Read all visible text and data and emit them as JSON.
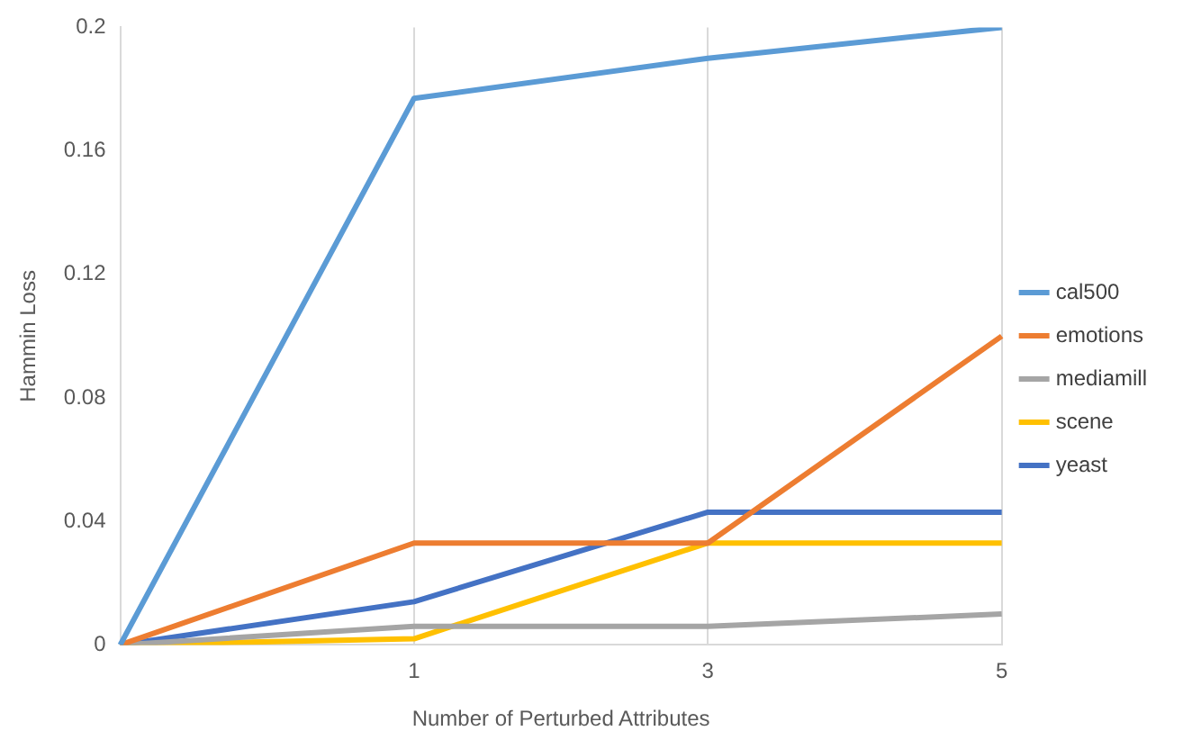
{
  "chart_data": {
    "type": "line",
    "xlabel": "Number of Perturbed Attributes",
    "ylabel": "Hammin Loss",
    "categories": [
      null,
      "1",
      "3",
      "5"
    ],
    "series": [
      {
        "name": "cal500",
        "color": "#5b9bd5",
        "values": [
          0,
          0.177,
          0.19,
          0.2
        ]
      },
      {
        "name": "emotions",
        "color": "#ed7d31",
        "values": [
          0,
          0.033,
          0.033,
          0.1
        ]
      },
      {
        "name": "mediamill",
        "color": "#a5a5a5",
        "values": [
          0,
          0.006,
          0.006,
          0.01
        ]
      },
      {
        "name": "scene",
        "color": "#ffc000",
        "values": [
          0,
          0.002,
          0.033,
          0.033
        ]
      },
      {
        "name": "yeast",
        "color": "#4472c4",
        "values": [
          0,
          0.014,
          0.043,
          0.043
        ]
      }
    ],
    "ylim": [
      0,
      0.2
    ],
    "yticks": [
      0,
      0.04,
      0.08,
      0.12,
      0.16,
      0.2
    ],
    "grid": "x",
    "legend": "right",
    "marker": "none",
    "line_style": "solid"
  }
}
